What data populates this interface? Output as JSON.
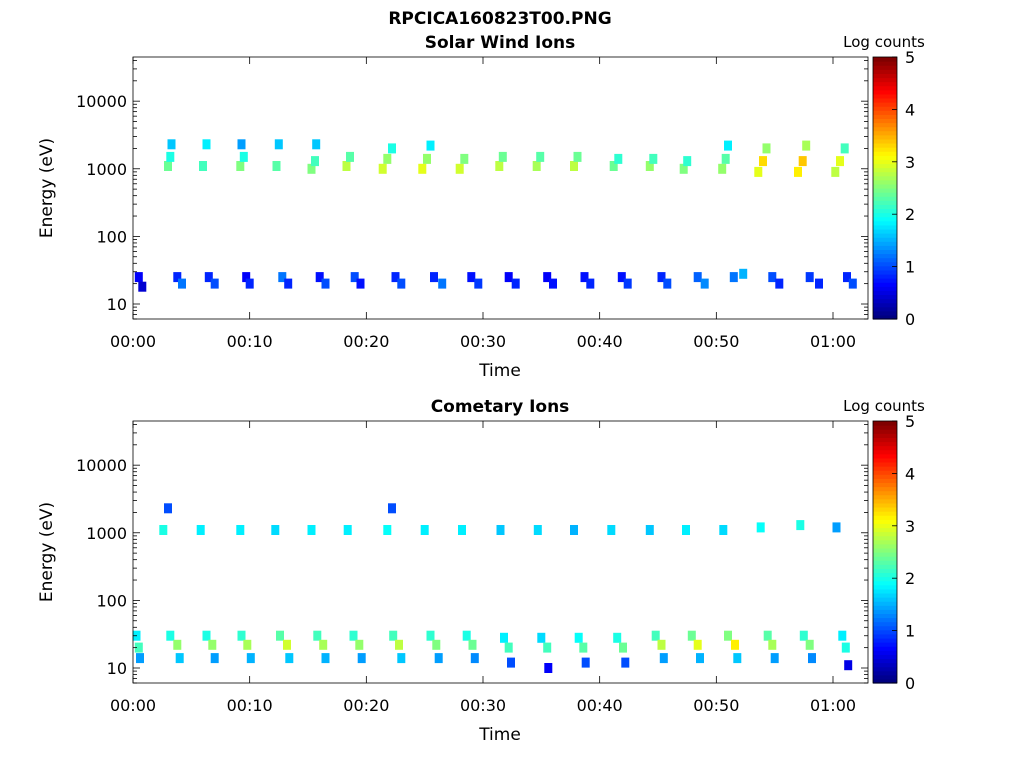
{
  "figure_title": "RPCICA160823T00.PNG",
  "colorbar": {
    "label": "Log counts",
    "ticks": [
      "0",
      "1",
      "2",
      "3",
      "4",
      "5"
    ],
    "range": [
      0,
      5
    ],
    "colormap": "jet"
  },
  "chart_data": [
    {
      "type": "heatmap",
      "title": "Solar Wind Ions",
      "xlabel": "Time",
      "ylabel": "Energy (eV)",
      "xlim": [
        0,
        63
      ],
      "ylim": [
        6,
        45000
      ],
      "yscale": "log",
      "x_tick_values": [
        0,
        10,
        20,
        30,
        40,
        50,
        60
      ],
      "x_tick_labels": [
        "00:00",
        "00:10",
        "00:20",
        "00:30",
        "00:40",
        "00:50",
        "01:00"
      ],
      "y_tick_values": [
        10,
        100,
        1000,
        10000
      ],
      "y_tick_labels": [
        "10",
        "100",
        "1000",
        "10000"
      ],
      "cells": [
        {
          "t": 0.5,
          "e": 25,
          "v": 0.6
        },
        {
          "t": 0.8,
          "e": 18,
          "v": 0.4
        },
        {
          "t": 3.0,
          "e": 1100,
          "v": 2.4
        },
        {
          "t": 3.2,
          "e": 1500,
          "v": 2.0
        },
        {
          "t": 3.3,
          "e": 2300,
          "v": 1.6
        },
        {
          "t": 3.8,
          "e": 25,
          "v": 0.8
        },
        {
          "t": 4.2,
          "e": 20,
          "v": 1.2
        },
        {
          "t": 6.0,
          "e": 1100,
          "v": 2.2
        },
        {
          "t": 6.3,
          "e": 2300,
          "v": 1.8
        },
        {
          "t": 6.5,
          "e": 25,
          "v": 0.8
        },
        {
          "t": 7.0,
          "e": 20,
          "v": 1.0
        },
        {
          "t": 9.2,
          "e": 1100,
          "v": 2.5
        },
        {
          "t": 9.5,
          "e": 1500,
          "v": 2.0
        },
        {
          "t": 9.3,
          "e": 2300,
          "v": 1.4
        },
        {
          "t": 9.7,
          "e": 25,
          "v": 0.6
        },
        {
          "t": 10.0,
          "e": 20,
          "v": 0.8
        },
        {
          "t": 12.3,
          "e": 1100,
          "v": 2.3
        },
        {
          "t": 12.5,
          "e": 2300,
          "v": 1.6
        },
        {
          "t": 12.8,
          "e": 25,
          "v": 1.2
        },
        {
          "t": 13.3,
          "e": 20,
          "v": 0.8
        },
        {
          "t": 15.3,
          "e": 1000,
          "v": 2.5
        },
        {
          "t": 15.6,
          "e": 1300,
          "v": 2.2
        },
        {
          "t": 15.7,
          "e": 2300,
          "v": 1.6
        },
        {
          "t": 16.0,
          "e": 25,
          "v": 0.7
        },
        {
          "t": 16.5,
          "e": 20,
          "v": 1.0
        },
        {
          "t": 18.3,
          "e": 1100,
          "v": 2.8
        },
        {
          "t": 18.6,
          "e": 1500,
          "v": 2.3
        },
        {
          "t": 19.0,
          "e": 25,
          "v": 1.0
        },
        {
          "t": 19.5,
          "e": 20,
          "v": 0.7
        },
        {
          "t": 21.4,
          "e": 1000,
          "v": 2.9
        },
        {
          "t": 21.8,
          "e": 1400,
          "v": 2.6
        },
        {
          "t": 22.2,
          "e": 2000,
          "v": 2.0
        },
        {
          "t": 22.5,
          "e": 25,
          "v": 0.8
        },
        {
          "t": 23.0,
          "e": 20,
          "v": 1.0
        },
        {
          "t": 24.8,
          "e": 1000,
          "v": 3.0
        },
        {
          "t": 25.2,
          "e": 1400,
          "v": 2.6
        },
        {
          "t": 25.5,
          "e": 2200,
          "v": 1.8
        },
        {
          "t": 25.8,
          "e": 25,
          "v": 0.8
        },
        {
          "t": 26.5,
          "e": 20,
          "v": 1.2
        },
        {
          "t": 28.0,
          "e": 1000,
          "v": 2.9
        },
        {
          "t": 28.4,
          "e": 1400,
          "v": 2.5
        },
        {
          "t": 29.0,
          "e": 25,
          "v": 0.7
        },
        {
          "t": 29.6,
          "e": 20,
          "v": 0.9
        },
        {
          "t": 31.4,
          "e": 1100,
          "v": 2.8
        },
        {
          "t": 31.7,
          "e": 1500,
          "v": 2.4
        },
        {
          "t": 32.2,
          "e": 25,
          "v": 0.6
        },
        {
          "t": 32.8,
          "e": 20,
          "v": 0.8
        },
        {
          "t": 34.6,
          "e": 1100,
          "v": 2.7
        },
        {
          "t": 34.9,
          "e": 1500,
          "v": 2.3
        },
        {
          "t": 35.5,
          "e": 25,
          "v": 0.6
        },
        {
          "t": 36.0,
          "e": 20,
          "v": 0.7
        },
        {
          "t": 37.8,
          "e": 1100,
          "v": 2.8
        },
        {
          "t": 38.1,
          "e": 1500,
          "v": 2.4
        },
        {
          "t": 38.7,
          "e": 25,
          "v": 0.7
        },
        {
          "t": 39.2,
          "e": 20,
          "v": 0.8
        },
        {
          "t": 41.2,
          "e": 1100,
          "v": 2.4
        },
        {
          "t": 41.6,
          "e": 1400,
          "v": 2.1
        },
        {
          "t": 41.9,
          "e": 25,
          "v": 0.7
        },
        {
          "t": 42.4,
          "e": 20,
          "v": 0.9
        },
        {
          "t": 44.3,
          "e": 1100,
          "v": 2.6
        },
        {
          "t": 44.6,
          "e": 1400,
          "v": 2.2
        },
        {
          "t": 45.3,
          "e": 25,
          "v": 0.8
        },
        {
          "t": 45.8,
          "e": 20,
          "v": 1.0
        },
        {
          "t": 47.2,
          "e": 1000,
          "v": 2.5
        },
        {
          "t": 47.5,
          "e": 1300,
          "v": 2.1
        },
        {
          "t": 48.4,
          "e": 25,
          "v": 1.1
        },
        {
          "t": 49.0,
          "e": 20,
          "v": 1.3
        },
        {
          "t": 50.5,
          "e": 1000,
          "v": 2.6
        },
        {
          "t": 50.8,
          "e": 1400,
          "v": 2.3
        },
        {
          "t": 51.0,
          "e": 2200,
          "v": 1.8
        },
        {
          "t": 51.5,
          "e": 25,
          "v": 1.2
        },
        {
          "t": 52.3,
          "e": 28,
          "v": 1.5
        },
        {
          "t": 53.6,
          "e": 900,
          "v": 3.0
        },
        {
          "t": 54.0,
          "e": 1300,
          "v": 3.3
        },
        {
          "t": 54.3,
          "e": 2000,
          "v": 2.6
        },
        {
          "t": 54.8,
          "e": 25,
          "v": 1.0
        },
        {
          "t": 55.4,
          "e": 20,
          "v": 0.8
        },
        {
          "t": 57.0,
          "e": 900,
          "v": 3.2
        },
        {
          "t": 57.4,
          "e": 1300,
          "v": 3.4
        },
        {
          "t": 57.7,
          "e": 2200,
          "v": 2.7
        },
        {
          "t": 58.0,
          "e": 25,
          "v": 0.9
        },
        {
          "t": 58.8,
          "e": 20,
          "v": 0.8
        },
        {
          "t": 60.2,
          "e": 900,
          "v": 2.8
        },
        {
          "t": 60.6,
          "e": 1300,
          "v": 3.0
        },
        {
          "t": 61.0,
          "e": 2000,
          "v": 2.2
        },
        {
          "t": 61.2,
          "e": 25,
          "v": 0.8
        },
        {
          "t": 61.7,
          "e": 20,
          "v": 1.0
        }
      ]
    },
    {
      "type": "heatmap",
      "title": "Cometary Ions",
      "xlabel": "Time",
      "ylabel": "Energy (eV)",
      "xlim": [
        0,
        63
      ],
      "ylim": [
        6,
        45000
      ],
      "yscale": "log",
      "x_tick_values": [
        0,
        10,
        20,
        30,
        40,
        50,
        60
      ],
      "x_tick_labels": [
        "00:00",
        "00:10",
        "00:20",
        "00:30",
        "00:40",
        "00:50",
        "01:00"
      ],
      "y_tick_values": [
        10,
        100,
        1000,
        10000
      ],
      "y_tick_labels": [
        "10",
        "100",
        "1000",
        "10000"
      ],
      "cells": [
        {
          "t": 0.3,
          "e": 30,
          "v": 1.8
        },
        {
          "t": 0.5,
          "e": 20,
          "v": 2.2
        },
        {
          "t": 0.6,
          "e": 14,
          "v": 1.4
        },
        {
          "t": 2.6,
          "e": 1100,
          "v": 2.0
        },
        {
          "t": 3.0,
          "e": 2300,
          "v": 1.0
        },
        {
          "t": 3.2,
          "e": 30,
          "v": 2.0
        },
        {
          "t": 3.8,
          "e": 22,
          "v": 2.6
        },
        {
          "t": 4.0,
          "e": 14,
          "v": 1.6
        },
        {
          "t": 5.8,
          "e": 1100,
          "v": 1.8
        },
        {
          "t": 6.3,
          "e": 30,
          "v": 2.0
        },
        {
          "t": 6.8,
          "e": 22,
          "v": 2.6
        },
        {
          "t": 7.0,
          "e": 14,
          "v": 1.4
        },
        {
          "t": 9.2,
          "e": 1100,
          "v": 1.8
        },
        {
          "t": 9.3,
          "e": 30,
          "v": 2.1
        },
        {
          "t": 9.8,
          "e": 22,
          "v": 2.7
        },
        {
          "t": 10.1,
          "e": 14,
          "v": 1.5
        },
        {
          "t": 12.2,
          "e": 1100,
          "v": 1.7
        },
        {
          "t": 12.6,
          "e": 30,
          "v": 2.3
        },
        {
          "t": 13.2,
          "e": 22,
          "v": 2.9
        },
        {
          "t": 13.4,
          "e": 14,
          "v": 1.6
        },
        {
          "t": 15.3,
          "e": 1100,
          "v": 1.8
        },
        {
          "t": 15.8,
          "e": 30,
          "v": 2.2
        },
        {
          "t": 16.3,
          "e": 22,
          "v": 2.7
        },
        {
          "t": 16.5,
          "e": 14,
          "v": 1.5
        },
        {
          "t": 18.4,
          "e": 1100,
          "v": 1.8
        },
        {
          "t": 18.9,
          "e": 30,
          "v": 2.1
        },
        {
          "t": 19.4,
          "e": 22,
          "v": 2.6
        },
        {
          "t": 19.6,
          "e": 14,
          "v": 1.4
        },
        {
          "t": 21.8,
          "e": 1100,
          "v": 1.9
        },
        {
          "t": 22.2,
          "e": 2300,
          "v": 1.0
        },
        {
          "t": 22.3,
          "e": 30,
          "v": 2.2
        },
        {
          "t": 22.8,
          "e": 22,
          "v": 2.8
        },
        {
          "t": 23.0,
          "e": 14,
          "v": 1.6
        },
        {
          "t": 25.0,
          "e": 1100,
          "v": 1.8
        },
        {
          "t": 25.5,
          "e": 30,
          "v": 2.1
        },
        {
          "t": 26.0,
          "e": 22,
          "v": 2.5
        },
        {
          "t": 26.2,
          "e": 14,
          "v": 1.4
        },
        {
          "t": 28.2,
          "e": 1100,
          "v": 1.8
        },
        {
          "t": 28.6,
          "e": 30,
          "v": 2.0
        },
        {
          "t": 29.1,
          "e": 22,
          "v": 2.4
        },
        {
          "t": 29.3,
          "e": 14,
          "v": 1.3
        },
        {
          "t": 31.5,
          "e": 1100,
          "v": 1.6
        },
        {
          "t": 31.8,
          "e": 28,
          "v": 1.8
        },
        {
          "t": 32.2,
          "e": 20,
          "v": 2.2
        },
        {
          "t": 32.4,
          "e": 12,
          "v": 1.0
        },
        {
          "t": 34.7,
          "e": 1100,
          "v": 1.7
        },
        {
          "t": 35.0,
          "e": 28,
          "v": 1.7
        },
        {
          "t": 35.5,
          "e": 20,
          "v": 2.2
        },
        {
          "t": 35.6,
          "e": 10,
          "v": 0.6
        },
        {
          "t": 37.8,
          "e": 1100,
          "v": 1.5
        },
        {
          "t": 38.2,
          "e": 28,
          "v": 1.9
        },
        {
          "t": 38.6,
          "e": 20,
          "v": 2.3
        },
        {
          "t": 38.8,
          "e": 12,
          "v": 1.0
        },
        {
          "t": 41.0,
          "e": 1100,
          "v": 1.7
        },
        {
          "t": 41.5,
          "e": 28,
          "v": 2.0
        },
        {
          "t": 42.0,
          "e": 20,
          "v": 2.4
        },
        {
          "t": 42.2,
          "e": 12,
          "v": 1.0
        },
        {
          "t": 44.3,
          "e": 1100,
          "v": 1.6
        },
        {
          "t": 44.8,
          "e": 30,
          "v": 2.2
        },
        {
          "t": 45.3,
          "e": 22,
          "v": 2.8
        },
        {
          "t": 45.5,
          "e": 14,
          "v": 1.4
        },
        {
          "t": 47.4,
          "e": 1100,
          "v": 1.8
        },
        {
          "t": 47.9,
          "e": 30,
          "v": 2.4
        },
        {
          "t": 48.4,
          "e": 22,
          "v": 3.0
        },
        {
          "t": 48.6,
          "e": 14,
          "v": 1.5
        },
        {
          "t": 50.6,
          "e": 1100,
          "v": 1.7
        },
        {
          "t": 51.0,
          "e": 30,
          "v": 2.5
        },
        {
          "t": 51.6,
          "e": 22,
          "v": 3.2
        },
        {
          "t": 51.8,
          "e": 14,
          "v": 1.6
        },
        {
          "t": 53.8,
          "e": 1200,
          "v": 1.9
        },
        {
          "t": 54.4,
          "e": 30,
          "v": 2.3
        },
        {
          "t": 54.8,
          "e": 22,
          "v": 2.7
        },
        {
          "t": 55.0,
          "e": 14,
          "v": 1.4
        },
        {
          "t": 57.2,
          "e": 1300,
          "v": 2.0
        },
        {
          "t": 57.5,
          "e": 30,
          "v": 2.1
        },
        {
          "t": 58.0,
          "e": 22,
          "v": 2.5
        },
        {
          "t": 58.2,
          "e": 14,
          "v": 1.3
        },
        {
          "t": 60.3,
          "e": 1200,
          "v": 1.4
        },
        {
          "t": 60.8,
          "e": 30,
          "v": 1.8
        },
        {
          "t": 61.1,
          "e": 20,
          "v": 2.0
        },
        {
          "t": 61.3,
          "e": 11,
          "v": 0.5
        }
      ]
    }
  ]
}
